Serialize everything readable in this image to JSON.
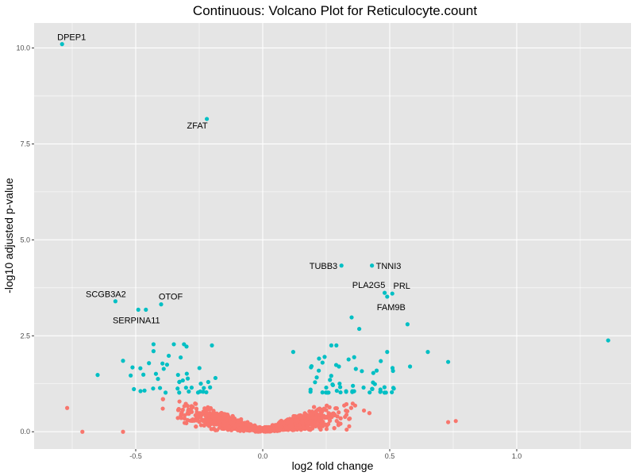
{
  "chart_data": {
    "type": "scatter",
    "title": "Continuous: Volcano Plot for Reticulocyte.count",
    "xlabel": "log2 fold change",
    "ylabel": "-log10 adjusted p-value",
    "xlim": [
      -0.9,
      1.45
    ],
    "ylim": [
      -0.45,
      10.65
    ],
    "x_ticks": [
      -0.5,
      0.0,
      0.5,
      1.0
    ],
    "x_tick_labels": [
      "-0.5",
      "0.0",
      "0.5",
      "1.0"
    ],
    "y_ticks": [
      0.0,
      2.5,
      5.0,
      7.5,
      10.0
    ],
    "y_tick_labels": [
      "0.0",
      "2.5",
      "5.0",
      "7.5",
      "10.0"
    ],
    "grid": true,
    "legend": "none",
    "colors": {
      "significant": "#00BFC4",
      "not_significant": "#F8766D",
      "panel_bg": "#E5E5E5",
      "grid": "#FFFFFF"
    },
    "significance_threshold": 1.0,
    "labeled_points": [
      {
        "gene": "DPEP1",
        "x": -0.79,
        "y": 10.1
      },
      {
        "gene": "ZFAT",
        "x": -0.22,
        "y": 8.15
      },
      {
        "gene": "TUBB3",
        "x": 0.31,
        "y": 4.33
      },
      {
        "gene": "TNNI3",
        "x": 0.43,
        "y": 4.33
      },
      {
        "gene": "PLA2G5",
        "x": 0.48,
        "y": 3.62
      },
      {
        "gene": "PRL",
        "x": 0.51,
        "y": 3.6
      },
      {
        "gene": "FAM9B",
        "x": 0.49,
        "y": 3.52
      },
      {
        "gene": "SCGB3A2",
        "x": -0.58,
        "y": 3.4
      },
      {
        "gene": "OTOF",
        "x": -0.4,
        "y": 3.32
      },
      {
        "gene": "SERPINA11",
        "x": -0.46,
        "y": 3.18
      }
    ],
    "other_significant_points": [
      {
        "x": -0.49,
        "y": 3.18
      },
      {
        "x": 0.35,
        "y": 2.98
      },
      {
        "x": 0.38,
        "y": 2.68
      },
      {
        "x": 0.57,
        "y": 2.8
      },
      {
        "x": 1.36,
        "y": 2.38
      },
      {
        "x": -0.43,
        "y": 2.28
      },
      {
        "x": -0.35,
        "y": 2.28
      },
      {
        "x": -0.31,
        "y": 2.28
      },
      {
        "x": -0.3,
        "y": 2.22
      },
      {
        "x": -0.2,
        "y": 2.25
      },
      {
        "x": -0.43,
        "y": 2.1
      },
      {
        "x": -0.37,
        "y": 1.98
      },
      {
        "x": 0.27,
        "y": 2.25
      },
      {
        "x": 0.29,
        "y": 2.25
      },
      {
        "x": 0.49,
        "y": 2.08
      },
      {
        "x": 0.65,
        "y": 2.08
      },
      {
        "x": 0.12,
        "y": 2.08
      },
      {
        "x": -0.55,
        "y": 1.85
      },
      {
        "x": 0.73,
        "y": 1.82
      },
      {
        "x": 0.58,
        "y": 1.7
      },
      {
        "x": 0.3,
        "y": 1.7
      },
      {
        "x": -0.65,
        "y": 1.48
      },
      {
        "x": -0.28,
        "y": 1.15
      },
      {
        "x": 0.25,
        "y": 1.15
      }
    ],
    "cluster_spec": {
      "significant_points": 90,
      "non_significant_points": 2200,
      "outlier_points": [
        {
          "x": -0.77,
          "y": 0.62
        },
        {
          "x": -0.71,
          "y": 0.0
        },
        {
          "x": -0.55,
          "y": 0.0
        },
        {
          "x": 0.73,
          "y": 0.25
        },
        {
          "x": 0.76,
          "y": 0.28
        }
      ]
    }
  }
}
